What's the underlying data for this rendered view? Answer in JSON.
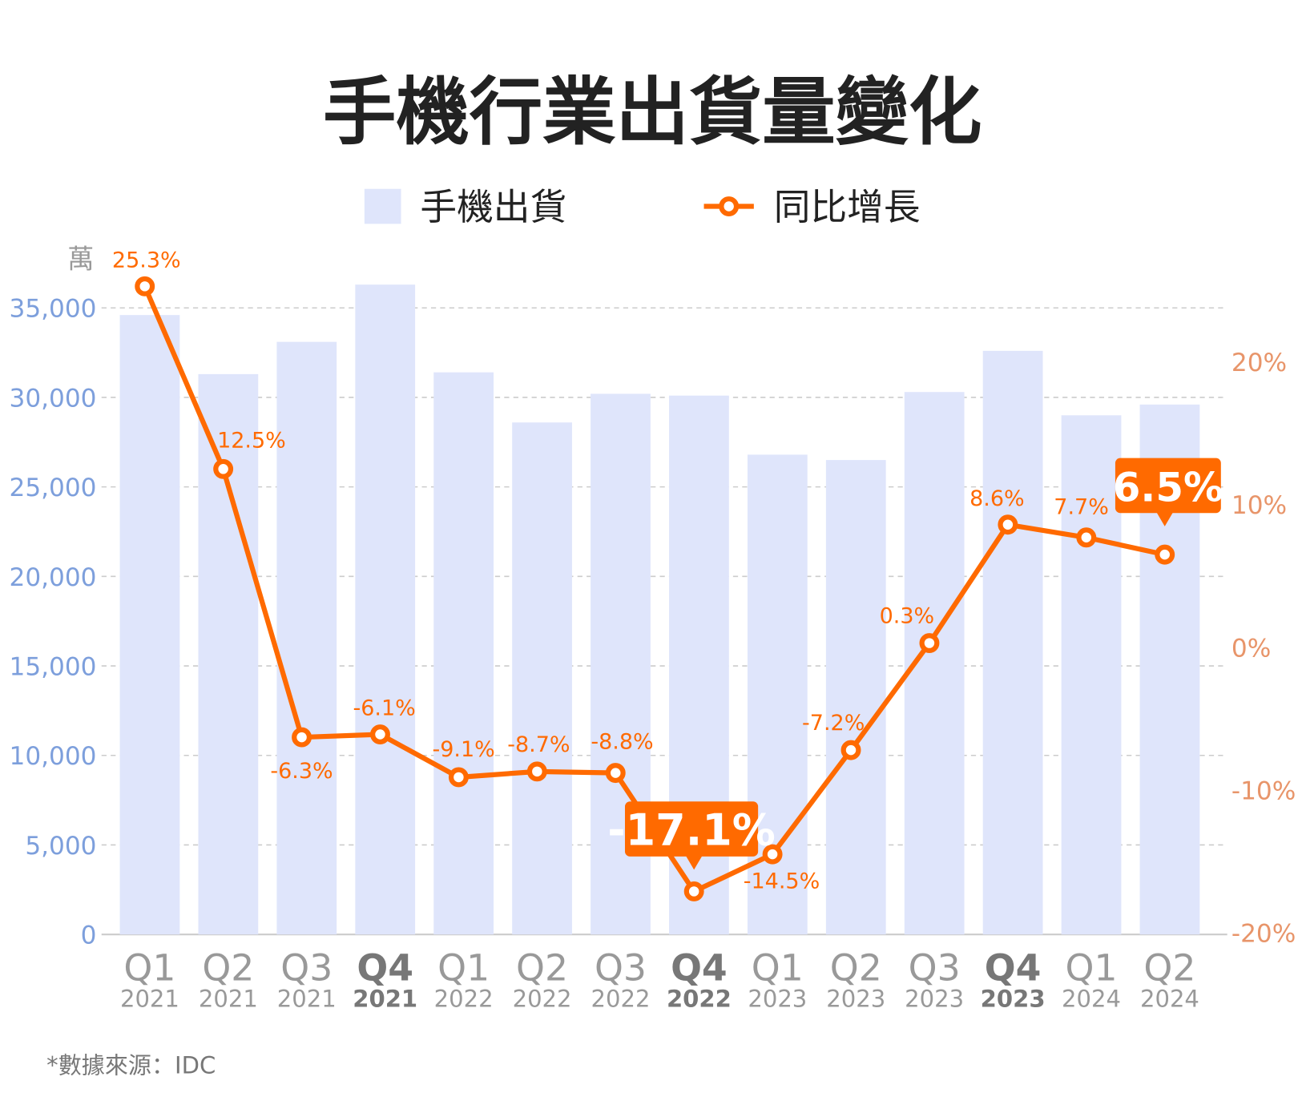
{
  "chart_data": {
    "type": "bar+line",
    "title": "手機行業出貨量變化",
    "source_note": "*數據來源：IDC",
    "left_axis": {
      "unit_label": "萬",
      "ylim": [
        0,
        35000
      ],
      "ticks": [
        "0",
        "5,000",
        "10,000",
        "15,000",
        "20,000",
        "25,000",
        "30,000",
        "35,000"
      ],
      "tick_values": [
        0,
        5000,
        10000,
        15000,
        20000,
        25000,
        30000,
        35000
      ]
    },
    "right_axis": {
      "ylim": [
        -20,
        20
      ],
      "ticks": [
        "-20%",
        "-10%",
        "0%",
        "10%",
        "20%"
      ],
      "tick_values": [
        -20,
        -10,
        0,
        10,
        20
      ]
    },
    "grid": true,
    "legend_placement": "top-center",
    "categories": [
      {
        "quarter": "Q1",
        "year": "2021",
        "bold": false
      },
      {
        "quarter": "Q2",
        "year": "2021",
        "bold": false
      },
      {
        "quarter": "Q3",
        "year": "2021",
        "bold": false
      },
      {
        "quarter": "Q4",
        "year": "2021",
        "bold": true
      },
      {
        "quarter": "Q1",
        "year": "2022",
        "bold": false
      },
      {
        "quarter": "Q2",
        "year": "2022",
        "bold": false
      },
      {
        "quarter": "Q3",
        "year": "2022",
        "bold": false
      },
      {
        "quarter": "Q4",
        "year": "2022",
        "bold": true
      },
      {
        "quarter": "Q1",
        "year": "2023",
        "bold": false
      },
      {
        "quarter": "Q2",
        "year": "2023",
        "bold": false
      },
      {
        "quarter": "Q3",
        "year": "2023",
        "bold": false
      },
      {
        "quarter": "Q4",
        "year": "2023",
        "bold": true
      },
      {
        "quarter": "Q1",
        "year": "2024",
        "bold": false
      },
      {
        "quarter": "Q2",
        "year": "2024",
        "bold": false
      }
    ],
    "series": [
      {
        "name": "手機出貨",
        "type": "bar",
        "axis": "left",
        "color": "#dfe5fb",
        "values": [
          34600,
          31300,
          33100,
          36300,
          31400,
          28600,
          30200,
          30100,
          26800,
          26500,
          30300,
          32600,
          29000,
          29600
        ]
      },
      {
        "name": "同比增長",
        "type": "line",
        "axis": "right",
        "color": "#ff6a00",
        "values": [
          25.3,
          12.5,
          -6.3,
          -6.1,
          -9.1,
          -8.7,
          -8.8,
          -17.1,
          -14.5,
          -7.2,
          0.3,
          8.6,
          7.7,
          6.5
        ],
        "labels": [
          "25.3%",
          "12.5%",
          "-6.3%",
          "-6.1%",
          "-9.1%",
          "-8.7%",
          "-8.8%",
          "-17.1%",
          "-14.5%",
          "-7.2%",
          "0.3%",
          "8.6%",
          "7.7%",
          "6.5%"
        ],
        "highlighted": [
          7,
          13
        ]
      }
    ]
  },
  "colors": {
    "left_axis": "#7d9fdc",
    "right_axis": "#e8956a",
    "title": "#222222",
    "category": "#999999",
    "category_bold": "#777777"
  }
}
